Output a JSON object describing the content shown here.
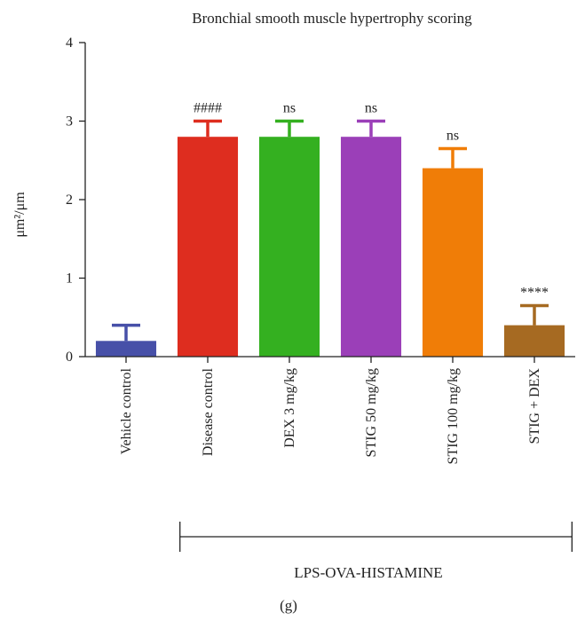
{
  "chart_data": {
    "type": "bar",
    "title": "Bronchial smooth muscle hypertrophy scoring",
    "ylabel": "μm²/μm",
    "ylim": [
      0,
      4
    ],
    "yticks": [
      "0",
      "1",
      "2",
      "3",
      "4"
    ],
    "categories": [
      "Vehicle control",
      "Disease control",
      "DEX 3 mg/kg",
      "STIG 50 mg/kg",
      "STIG 100 mg/kg",
      "STIG + DEX"
    ],
    "values": [
      0.2,
      2.8,
      2.8,
      2.8,
      2.4,
      0.4
    ],
    "errors": [
      0.2,
      0.2,
      0.2,
      0.2,
      0.25,
      0.25
    ],
    "annotations": [
      "",
      "####",
      "ns",
      "ns",
      "ns",
      "****"
    ],
    "colors": [
      "#4750a8",
      "#de2d1f",
      "#34b020",
      "#9b3fb8",
      "#f07d07",
      "#a66a22"
    ],
    "group_label": "LPS-OVA-HISTAMINE",
    "panel_label": "(g)"
  }
}
